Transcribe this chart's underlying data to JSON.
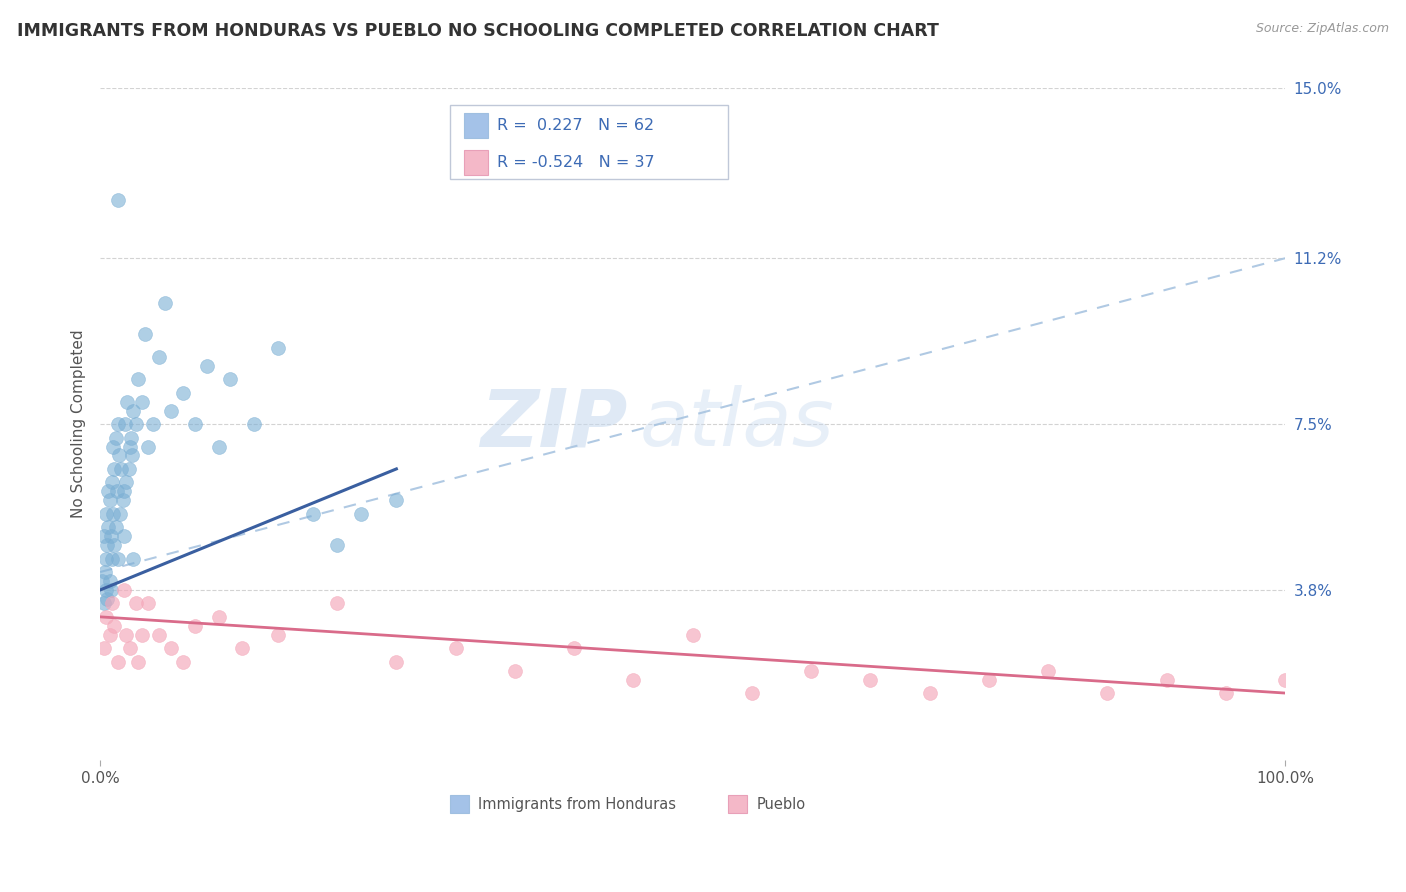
{
  "title": "IMMIGRANTS FROM HONDURAS VS PUEBLO NO SCHOOLING COMPLETED CORRELATION CHART",
  "source": "Source: ZipAtlas.com",
  "ylabel": "No Schooling Completed",
  "xlim": [
    0.0,
    100.0
  ],
  "ylim": [
    0.0,
    15.0
  ],
  "yticks": [
    3.8,
    7.5,
    11.2,
    15.0
  ],
  "ytick_labels": [
    "3.8%",
    "7.5%",
    "11.2%",
    "15.0%"
  ],
  "xtick_labels": [
    "0.0%",
    "100.0%"
  ],
  "watermark_text": "ZIP",
  "watermark_text2": "atlas",
  "blue_scatter_color": "#7bafd4",
  "pink_scatter_color": "#f4a7b9",
  "blue_trend_color": "#3a5fa0",
  "pink_trend_color": "#d96b8a",
  "dashed_line_color": "#a8c4e0",
  "blue_legend_color": "#a4c2e8",
  "pink_legend_color": "#f4b8c8",
  "legend_text_color": "#3d6bb5",
  "right_tick_color": "#3d6bb5",
  "grid_color": "#c8c8c8",
  "title_fontsize": 12.5,
  "label_fontsize": 11,
  "tick_fontsize": 11,
  "background_color": "#ffffff",
  "blue_x": [
    0.2,
    0.3,
    0.3,
    0.4,
    0.5,
    0.5,
    0.5,
    0.6,
    0.6,
    0.7,
    0.7,
    0.8,
    0.8,
    0.9,
    0.9,
    1.0,
    1.0,
    1.1,
    1.1,
    1.2,
    1.2,
    1.3,
    1.3,
    1.4,
    1.5,
    1.5,
    1.6,
    1.7,
    1.8,
    1.9,
    2.0,
    2.0,
    2.1,
    2.2,
    2.3,
    2.4,
    2.5,
    2.6,
    2.7,
    2.8,
    3.0,
    3.2,
    3.5,
    3.8,
    4.0,
    4.5,
    5.0,
    5.5,
    6.0,
    7.0,
    8.0,
    9.0,
    10.0,
    11.0,
    13.0,
    15.0,
    18.0,
    20.0,
    22.0,
    25.0,
    1.5,
    2.8
  ],
  "blue_y": [
    4.0,
    3.5,
    5.0,
    4.2,
    3.8,
    4.5,
    5.5,
    3.6,
    4.8,
    5.2,
    6.0,
    4.0,
    5.8,
    3.8,
    5.0,
    4.5,
    6.2,
    5.5,
    7.0,
    4.8,
    6.5,
    5.2,
    7.2,
    6.0,
    4.5,
    7.5,
    6.8,
    5.5,
    6.5,
    5.8,
    5.0,
    6.0,
    7.5,
    6.2,
    8.0,
    6.5,
    7.0,
    7.2,
    6.8,
    7.8,
    7.5,
    8.5,
    8.0,
    9.5,
    7.0,
    7.5,
    9.0,
    10.2,
    7.8,
    8.2,
    7.5,
    8.8,
    7.0,
    8.5,
    7.5,
    9.2,
    5.5,
    4.8,
    5.5,
    5.8,
    12.5,
    4.5
  ],
  "pink_x": [
    0.3,
    0.5,
    0.8,
    1.0,
    1.2,
    1.5,
    2.0,
    2.5,
    3.0,
    3.5,
    4.0,
    5.0,
    6.0,
    7.0,
    8.0,
    10.0,
    12.0,
    15.0,
    20.0,
    25.0,
    30.0,
    35.0,
    40.0,
    45.0,
    50.0,
    55.0,
    60.0,
    65.0,
    70.0,
    75.0,
    80.0,
    85.0,
    90.0,
    95.0,
    100.0,
    2.2,
    3.2
  ],
  "pink_y": [
    2.5,
    3.2,
    2.8,
    3.5,
    3.0,
    2.2,
    3.8,
    2.5,
    3.5,
    2.8,
    3.5,
    2.8,
    2.5,
    2.2,
    3.0,
    3.2,
    2.5,
    2.8,
    3.5,
    2.2,
    2.5,
    2.0,
    2.5,
    1.8,
    2.8,
    1.5,
    2.0,
    1.8,
    1.5,
    1.8,
    2.0,
    1.5,
    1.8,
    1.5,
    1.8,
    2.8,
    2.2
  ],
  "blue_trend_x_start": 0.0,
  "blue_trend_x_end": 25.0,
  "blue_trend_y_start": 3.8,
  "blue_trend_y_end": 6.5,
  "dashed_line_x_start": 0.0,
  "dashed_line_x_end": 100.0,
  "dashed_line_y_start": 4.2,
  "dashed_line_y_end": 11.2,
  "pink_trend_y_start": 3.2,
  "pink_trend_y_end": 1.5
}
